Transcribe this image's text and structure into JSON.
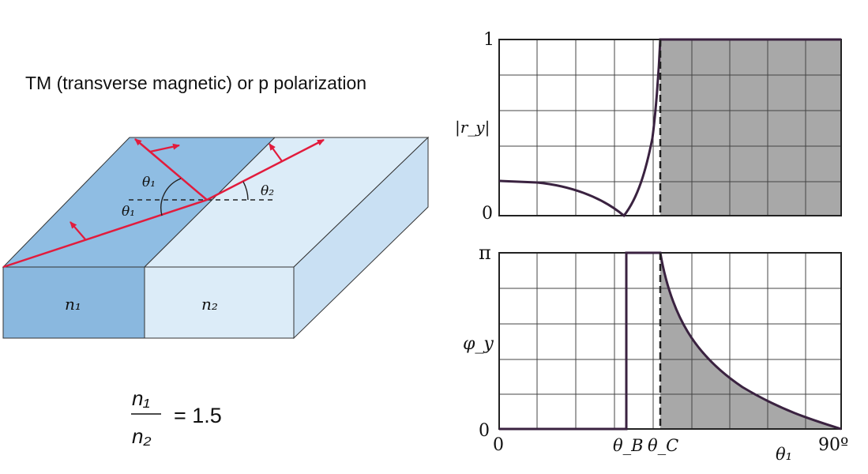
{
  "title": "TM (transverse magnetic) or p polarization",
  "diagram": {
    "medium1_label": "n₁",
    "medium2_label": "n₂",
    "angle_incident": "θ₁",
    "angle_reflected": "θ₁",
    "angle_transmitted": "θ₂",
    "colors": {
      "medium1": "#8fbde3",
      "medium2": "#dcecf8",
      "ray": "#e21b3c"
    }
  },
  "formula": {
    "numerator": "n₁",
    "denominator": "n₂",
    "rhs": "= 1.5"
  },
  "plots": {
    "top": {
      "ylabel": "|r_y|",
      "ytick_top": "1",
      "ytick_bottom": "0"
    },
    "bottom": {
      "ylabel": "φ_y",
      "ytick_top": "π",
      "ytick_bottom": "0",
      "xtick_left": "0",
      "xtick_brewster": "θ_B",
      "xtick_critical": "θ_C",
      "xlabel": "θ₁",
      "xtick_right": "90º"
    }
  }
}
